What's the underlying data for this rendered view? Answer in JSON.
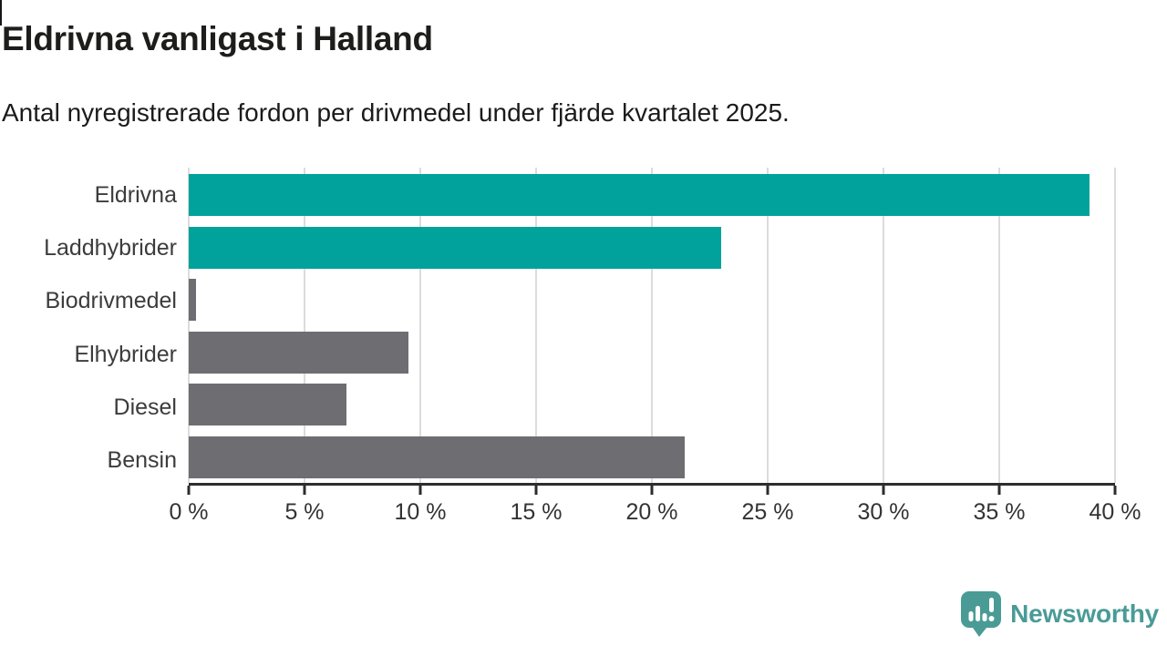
{
  "page": {
    "background": "#ffffff",
    "text_color": "#1d1d1b"
  },
  "chart_data": {
    "type": "bar",
    "orientation": "horizontal",
    "title": "Eldrivna vanligast i Halland",
    "subtitle": "Antal nyregistrerade fordon per drivmedel under fjärde kvartalet 2025.",
    "categories": [
      "Eldrivna",
      "Laddhybrider",
      "Biodrivmedel",
      "Elhybrider",
      "Diesel",
      "Bensin"
    ],
    "values": [
      38.9,
      23,
      0.3,
      9.5,
      6.8,
      21.4
    ],
    "unit": "%",
    "xlim": [
      0,
      40
    ],
    "xtick_step": 5,
    "xtick_labels": [
      "0 %",
      "5 %",
      "10 %",
      "15 %",
      "20 %",
      "25 %",
      "30 %",
      "35 %",
      "40 %"
    ],
    "grid": true,
    "legend": false,
    "colors": {
      "highlight": "#00a29b",
      "default": "#6d6d72",
      "gridline": "#dcdcdc",
      "axis": "#2d2d2d"
    },
    "bar_colors": [
      "#00a29b",
      "#00a29b",
      "#6d6d72",
      "#6d6d72",
      "#6d6d72",
      "#6d6d72"
    ]
  },
  "branding": {
    "logo_text": "Newsworthy",
    "logo_color": "#4a9b96"
  }
}
